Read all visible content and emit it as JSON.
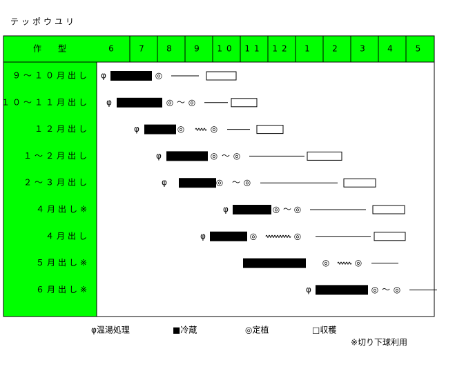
{
  "title": "テッポウユリ",
  "header": {
    "label": "作　　型",
    "months": [
      "6",
      "7",
      "8",
      "9",
      "10",
      "11",
      "12",
      "1",
      "2",
      "3",
      "4",
      "5"
    ]
  },
  "rows": [
    {
      "label": "９～１０月出し",
      "symbols": [
        "φ",
        "◎"
      ]
    },
    {
      "label": "１０～１１月出し",
      "symbols": [
        "φ",
        "◎",
        "～",
        "◎"
      ]
    },
    {
      "label": "１２月出し",
      "symbols": [
        "φ",
        "◎",
        "◎"
      ]
    },
    {
      "label": "１～２月出し",
      "symbols": [
        "φ",
        "◎",
        "～",
        "◎"
      ]
    },
    {
      "label": "２～３月出し",
      "symbols": [
        "φ",
        "◎",
        "～",
        "◎"
      ]
    },
    {
      "label": "４月出し※",
      "symbols": [
        "φ",
        "◎",
        "～",
        "◎"
      ]
    },
    {
      "label": "４月出し",
      "symbols": [
        "φ",
        "◎",
        "◎"
      ]
    },
    {
      "label": "５月出し※",
      "symbols": [
        "◎",
        "◎"
      ]
    },
    {
      "label": "６月出し※",
      "symbols": [
        "φ",
        "◎",
        "～",
        "◎"
      ]
    }
  ],
  "legend": [
    "φ温湯処理",
    "■冷蔵",
    "◎定植",
    "□収穫"
  ],
  "note": "※切り下球利用"
}
